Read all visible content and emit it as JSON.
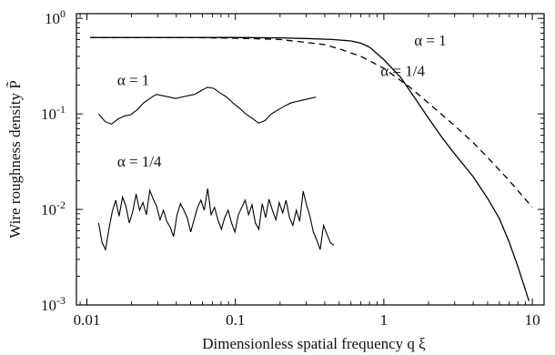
{
  "chart_data": {
    "type": "line",
    "xlabel": "Dimensionless spatial frequency q ξ",
    "ylabel": "Wire roughness density P̃",
    "x_scale": "log",
    "y_scale": "log",
    "xlim": [
      0.0085,
      12
    ],
    "ylim": [
      0.001,
      1.12
    ],
    "grid": false,
    "x_ticks": [
      {
        "value": 0.01,
        "label": "0.01"
      },
      {
        "value": 0.1,
        "label": "0.1"
      },
      {
        "value": 1,
        "label": "1"
      },
      {
        "value": 10,
        "label": "10"
      }
    ],
    "y_ticks": [
      {
        "value": 1,
        "base": "10",
        "exp": "0"
      },
      {
        "value": 0.1,
        "base": "10",
        "exp": "-1"
      },
      {
        "value": 0.01,
        "base": "10",
        "exp": "-2"
      },
      {
        "value": 0.001,
        "base": "10",
        "exp": "-3"
      }
    ],
    "series": [
      {
        "name": "α = 1",
        "style": "solid",
        "x": [
          0.0105,
          0.05,
          0.1,
          0.2,
          0.3,
          0.45,
          0.6,
          0.7,
          0.8,
          1.0,
          1.3,
          1.6,
          2.0,
          2.5,
          3.0,
          4.0,
          5.0,
          6.0,
          7.0,
          8.0,
          9.5
        ],
        "y": [
          0.63,
          0.63,
          0.63,
          0.625,
          0.615,
          0.6,
          0.58,
          0.55,
          0.5,
          0.37,
          0.24,
          0.15,
          0.09,
          0.055,
          0.038,
          0.022,
          0.013,
          0.008,
          0.0045,
          0.0025,
          0.0011
        ]
      },
      {
        "name": "α = 1/4",
        "style": "dashed",
        "x": [
          0.0105,
          0.05,
          0.1,
          0.15,
          0.2,
          0.3,
          0.4,
          0.5,
          0.7,
          1.0,
          1.5,
          2.0,
          3.0,
          4.0,
          5.0,
          7.0,
          10.0
        ],
        "y": [
          0.63,
          0.63,
          0.62,
          0.61,
          0.6,
          0.56,
          0.53,
          0.48,
          0.4,
          0.3,
          0.19,
          0.13,
          0.075,
          0.05,
          0.035,
          0.02,
          0.0105
        ]
      }
    ],
    "annotations": [
      {
        "text": "α = 1",
        "at": [
          1.6,
          0.52
        ]
      },
      {
        "text": "α = 1/4",
        "at": [
          0.95,
          0.25
        ]
      },
      {
        "text": "α = 1",
        "at": [
          0.016,
          0.2
        ]
      },
      {
        "text": "α = 1/4",
        "at": [
          0.016,
          0.028
        ]
      }
    ],
    "insets": [
      {
        "name": "profile α = 1",
        "x_range": [
          0.012,
          0.35
        ],
        "y": [
          0.1,
          0.083,
          0.078,
          0.088,
          0.095,
          0.098,
          0.11,
          0.13,
          0.145,
          0.16,
          0.155,
          0.15,
          0.145,
          0.15,
          0.155,
          0.16,
          0.175,
          0.19,
          0.185,
          0.165,
          0.15,
          0.13,
          0.115,
          0.1,
          0.09,
          0.08,
          0.085,
          0.1,
          0.11,
          0.12,
          0.13,
          0.135,
          0.14,
          0.145,
          0.15
        ]
      },
      {
        "name": "profile α = 1/4",
        "x_range": [
          0.012,
          0.46
        ],
        "y": [
          0.0072,
          0.0045,
          0.0038,
          0.0062,
          0.0095,
          0.0125,
          0.0085,
          0.0135,
          0.0108,
          0.0072,
          0.0095,
          0.0145,
          0.0098,
          0.0118,
          0.0088,
          0.0158,
          0.0128,
          0.0108,
          0.0078,
          0.0098,
          0.0075,
          0.0065,
          0.0052,
          0.0088,
          0.0115,
          0.0098,
          0.0082,
          0.0058,
          0.0078,
          0.0105,
          0.0125,
          0.0098,
          0.0165,
          0.0088,
          0.0105,
          0.0078,
          0.0062,
          0.0082,
          0.0098,
          0.0072,
          0.0058,
          0.0088,
          0.0105,
          0.0125,
          0.0088,
          0.0112,
          0.0072,
          0.0062,
          0.0115,
          0.0082,
          0.0128,
          0.0098,
          0.0078,
          0.0118,
          0.0092,
          0.0125,
          0.0082,
          0.0068,
          0.0098,
          0.0075,
          0.0155,
          0.0112,
          0.0085,
          0.0058,
          0.0048,
          0.0038,
          0.0068,
          0.0055,
          0.0045,
          0.0042
        ]
      }
    ]
  }
}
